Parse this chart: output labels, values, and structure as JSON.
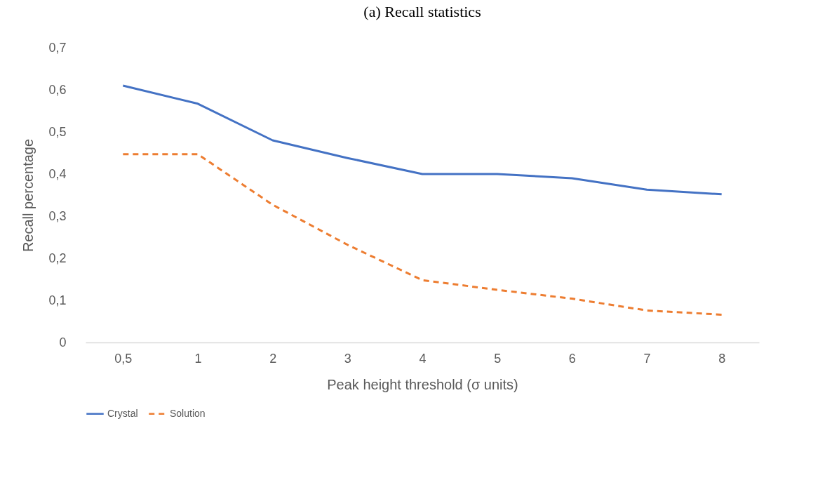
{
  "chart_data": {
    "type": "line",
    "title": "(a) Recall statistics",
    "xlabel": "Peak height threshold (σ units)",
    "ylabel": "Recall percentage",
    "categories": [
      "0,5",
      "1",
      "2",
      "3",
      "4",
      "5",
      "6",
      "7",
      "8"
    ],
    "series": [
      {
        "name": "Crystal",
        "color": "#4472c4",
        "line_style": "solid",
        "values": [
          0.61,
          0.567,
          0.48,
          0.438,
          0.4,
          0.4,
          0.39,
          0.363,
          0.352
        ]
      },
      {
        "name": "Solution",
        "color": "#ed7d31",
        "line_style": "dashed",
        "values": [
          0.447,
          0.447,
          0.327,
          0.232,
          0.148,
          0.125,
          0.104,
          0.076,
          0.066
        ]
      }
    ],
    "ylim": [
      0,
      0.7
    ],
    "yticks": [
      0,
      {
        "value": 0.1,
        "label": "0,1"
      },
      {
        "value": 0.2,
        "label": "0,2"
      },
      {
        "value": 0.3,
        "label": "0,3"
      },
      {
        "value": 0.4,
        "label": "0,4"
      },
      {
        "value": 0.5,
        "label": "0,5"
      },
      {
        "value": 0.6,
        "label": "0,6"
      },
      {
        "value": 0.7,
        "label": "0,7"
      }
    ],
    "grid": false,
    "legend": "bottom",
    "marker": "none"
  }
}
